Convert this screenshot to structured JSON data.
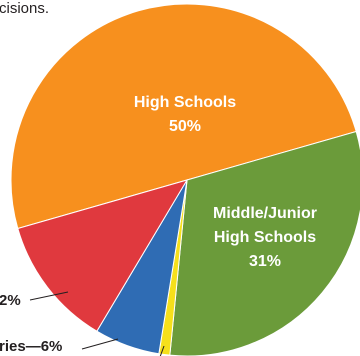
{
  "chart_data": {
    "type": "pie",
    "categories": [
      [
        "High Schools"
      ],
      [
        "Middle/Junior",
        "High Schools"
      ],
      null,
      null,
      null
    ],
    "values": [
      50,
      31,
      1,
      6,
      12
    ],
    "value_labels": [
      "50%",
      "31%",
      null,
      null,
      null
    ],
    "colors": [
      "#f7901e",
      "#6b9b3a",
      "#f6e01b",
      "#2f6cb4",
      "#e0393e"
    ],
    "annotations": [
      "cisions.",
      "2%",
      "ries—6%"
    ]
  }
}
